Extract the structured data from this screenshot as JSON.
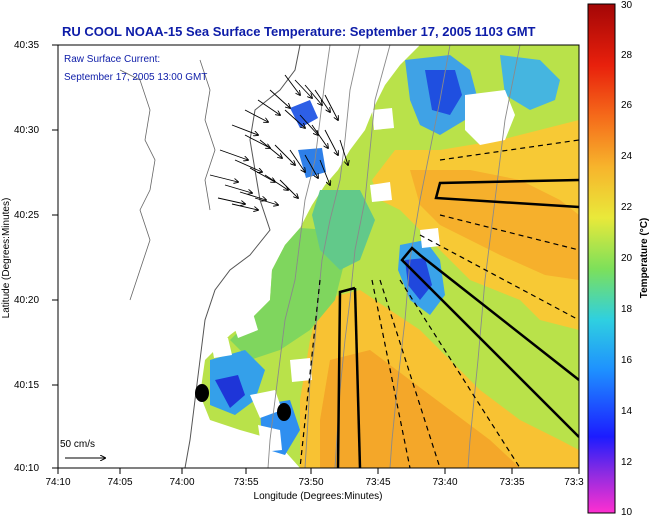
{
  "title": "RU COOL  NOAA-15  Sea Surface Temperature:  September 17, 2005 1103 GMT",
  "legend": {
    "line1": "Raw Surface Current:",
    "line2": "September 17, 2005 13:00 GMT"
  },
  "scale_label": "50 cm/s",
  "axes": {
    "xlabel": "Longitude (Degrees:Minutes)",
    "ylabel": "Latitude (Degrees:Minutes)",
    "xticks": [
      "74:10",
      "74:05",
      "74:00",
      "73:55",
      "73:50",
      "73:45",
      "73:40",
      "73:35",
      "73:3"
    ],
    "yticks": [
      "40:35",
      "40:30",
      "40:25",
      "40:20",
      "40:15",
      "40:10"
    ]
  },
  "colorbar": {
    "label": "Temperature (°C)",
    "ticks": [
      "30",
      "28",
      "26",
      "24",
      "22",
      "20",
      "18",
      "16",
      "14",
      "12",
      "10"
    ],
    "range": [
      10,
      30
    ]
  },
  "colors": {
    "land": "#ffffff",
    "sst_warm": "#f5c431",
    "sst_mid": "#9edd4b",
    "sst_cool": "#2fa8e6",
    "sst_cold": "#1e3fd9",
    "title_text": "#0d1ca8"
  }
}
